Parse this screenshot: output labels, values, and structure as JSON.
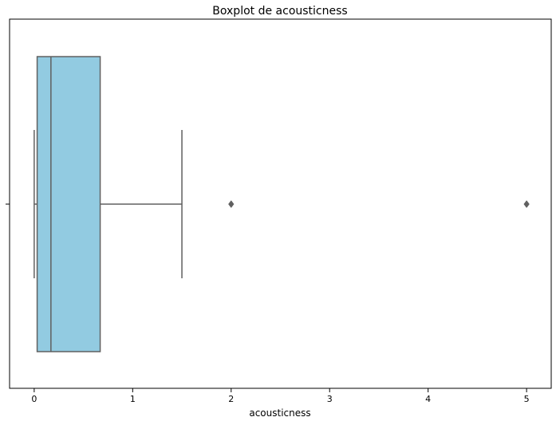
{
  "chart_data": {
    "type": "boxplot",
    "title": "Boxplot de acousticness",
    "xlabel": "acousticness",
    "ylabel": "",
    "xlim": [
      -0.25,
      5.25
    ],
    "xticks": [
      0,
      1,
      2,
      3,
      4,
      5
    ],
    "xtick_labels": [
      "0",
      "1",
      "2",
      "3",
      "4",
      "5"
    ],
    "orientation": "horizontal",
    "grid": false,
    "box": {
      "whisker_low": 0.0,
      "q1": 0.03,
      "median": 0.17,
      "q3": 0.67,
      "whisker_high": 1.5,
      "outliers": [
        2.0,
        5.0
      ],
      "color": "#92cbe1",
      "line_color": "#606060"
    }
  }
}
